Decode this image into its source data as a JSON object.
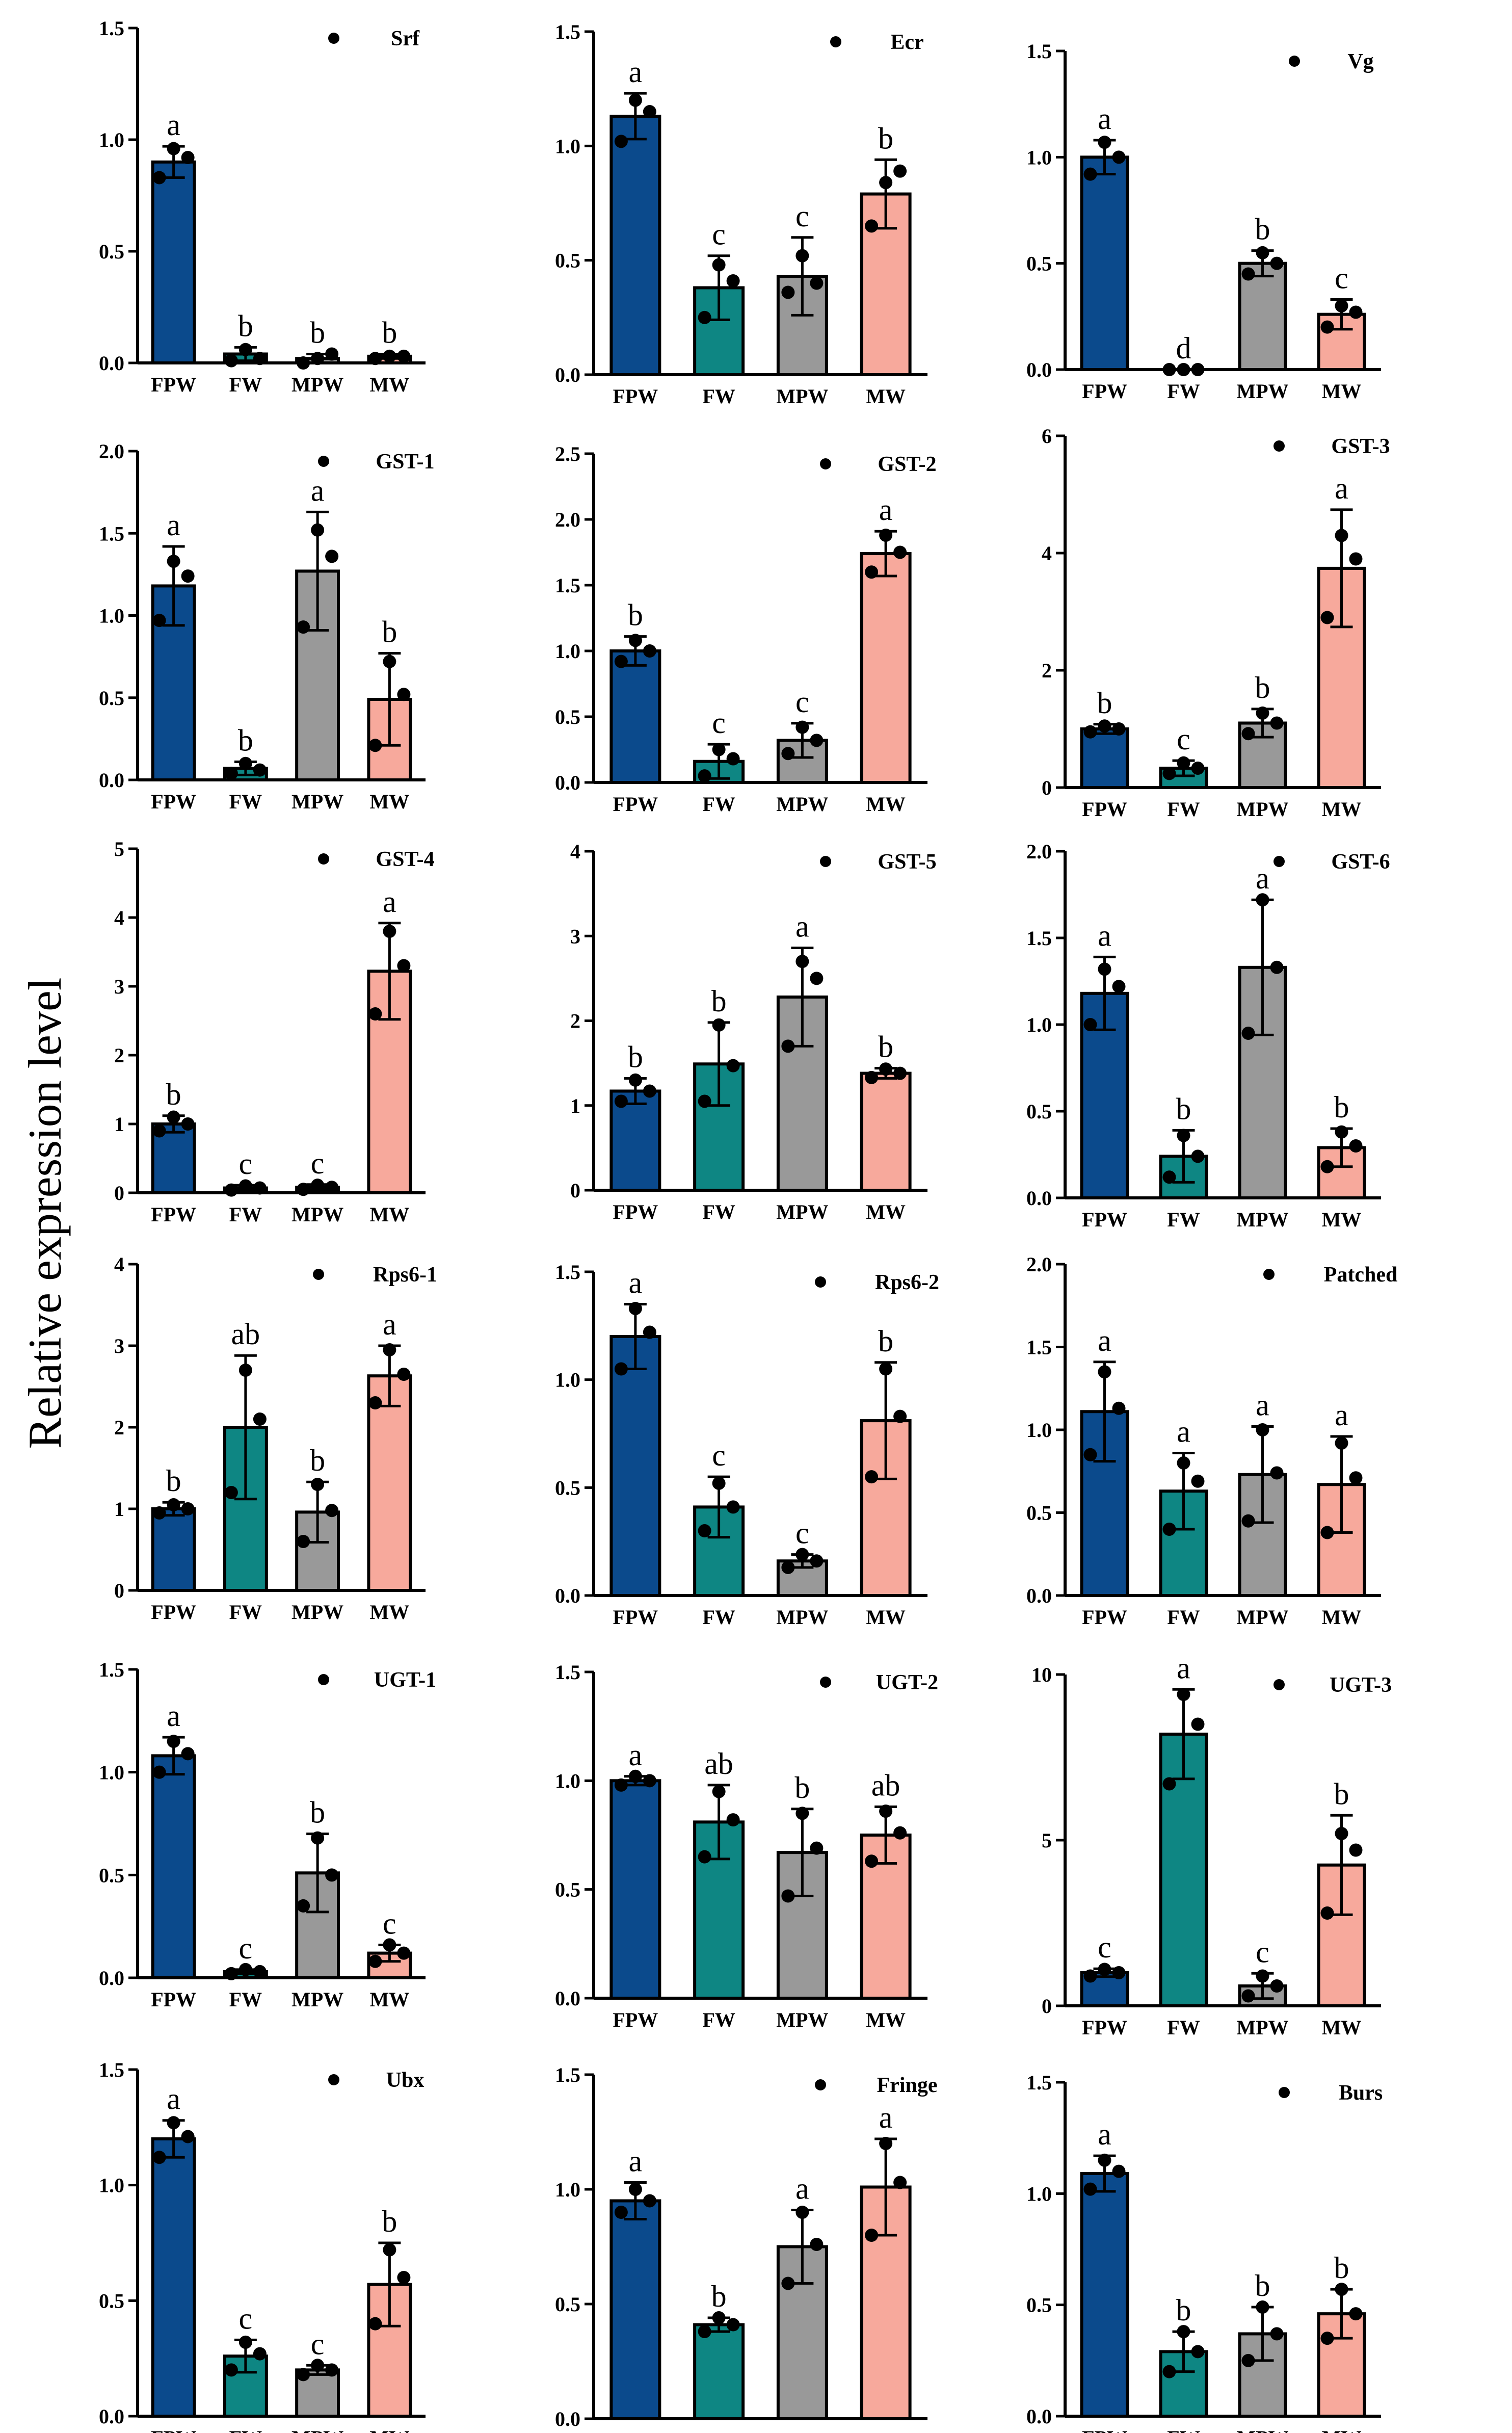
{
  "y_axis_label": "Relative expression level",
  "colors": {
    "FPW": "#0b4a8c",
    "FW": "#0e8683",
    "MPW": "#999999",
    "MW": "#f7a99c"
  },
  "chart_data": [
    {
      "type": "bar",
      "title": "Srf",
      "categories": [
        "FPW",
        "FW",
        "MPW",
        "MW"
      ],
      "values": [
        0.9,
        0.04,
        0.02,
        0.03
      ],
      "errors": [
        0.07,
        0.03,
        0.02,
        0.01
      ],
      "points": [
        [
          0.83,
          0.96,
          0.92
        ],
        [
          0.01,
          0.06,
          0.02
        ],
        [
          0.0,
          0.02,
          0.04
        ],
        [
          0.02,
          0.03,
          0.03
        ]
      ],
      "letters": [
        "a",
        "b",
        "b",
        "b"
      ],
      "ylim": [
        0,
        1.5
      ],
      "ticks": [
        "0.0",
        "0.5",
        "1.0",
        "1.5"
      ]
    },
    {
      "type": "bar",
      "title": "Ecr",
      "categories": [
        "FPW",
        "FW",
        "MPW",
        "MW"
      ],
      "values": [
        1.13,
        0.38,
        0.43,
        0.79
      ],
      "errors": [
        0.1,
        0.14,
        0.17,
        0.15
      ],
      "points": [
        [
          1.02,
          1.2,
          1.15
        ],
        [
          0.25,
          0.48,
          0.41
        ],
        [
          0.36,
          0.52,
          0.4
        ],
        [
          0.65,
          0.84,
          0.89
        ]
      ],
      "letters": [
        "a",
        "c",
        "c",
        "b"
      ],
      "ylim": [
        0,
        1.5
      ],
      "ticks": [
        "0.0",
        "0.5",
        "1.0",
        "1.5"
      ]
    },
    {
      "type": "bar",
      "title": "Vg",
      "categories": [
        "FPW",
        "FW",
        "MPW",
        "MW"
      ],
      "values": [
        1.0,
        0.0,
        0.5,
        0.26
      ],
      "errors": [
        0.08,
        0.0,
        0.06,
        0.07
      ],
      "points": [
        [
          0.92,
          1.07,
          1.0
        ],
        [
          0.0,
          0.0,
          0.0
        ],
        [
          0.45,
          0.55,
          0.5
        ],
        [
          0.2,
          0.3,
          0.27
        ]
      ],
      "letters": [
        "a",
        "d",
        "b",
        "c"
      ],
      "ylim": [
        0,
        1.5
      ],
      "ticks": [
        "0.0",
        "0.5",
        "1.0",
        "1.5"
      ]
    },
    {
      "type": "bar",
      "title": "GST-1",
      "categories": [
        "FPW",
        "FW",
        "MPW",
        "MW"
      ],
      "values": [
        1.18,
        0.07,
        1.27,
        0.49
      ],
      "errors": [
        0.24,
        0.04,
        0.36,
        0.28
      ],
      "points": [
        [
          0.97,
          1.33,
          1.24
        ],
        [
          0.04,
          0.1,
          0.06
        ],
        [
          0.93,
          1.52,
          1.36
        ],
        [
          0.21,
          0.72,
          0.52
        ]
      ],
      "letters": [
        "a",
        "b",
        "a",
        "b"
      ],
      "ylim": [
        0,
        2.0
      ],
      "ticks": [
        "0.0",
        "0.5",
        "1.0",
        "1.5",
        "2.0"
      ]
    },
    {
      "type": "bar",
      "title": "GST-2",
      "categories": [
        "FPW",
        "FW",
        "MPW",
        "MW"
      ],
      "values": [
        1.0,
        0.16,
        0.32,
        1.74
      ],
      "errors": [
        0.11,
        0.13,
        0.13,
        0.17
      ],
      "points": [
        [
          0.92,
          1.08,
          1.0
        ],
        [
          0.05,
          0.25,
          0.18
        ],
        [
          0.22,
          0.42,
          0.32
        ],
        [
          1.6,
          1.88,
          1.75
        ]
      ],
      "letters": [
        "b",
        "c",
        "c",
        "a"
      ],
      "ylim": [
        0,
        2.5
      ],
      "ticks": [
        "0.0",
        "0.5",
        "1.0",
        "1.5",
        "2.0",
        "2.5"
      ]
    },
    {
      "type": "bar",
      "title": "GST-3",
      "categories": [
        "FPW",
        "FW",
        "MPW",
        "MW"
      ],
      "values": [
        1.0,
        0.33,
        1.1,
        3.74
      ],
      "errors": [
        0.08,
        0.13,
        0.24,
        1.0
      ],
      "points": [
        [
          0.95,
          1.05,
          1.0
        ],
        [
          0.24,
          0.42,
          0.33
        ],
        [
          0.92,
          1.27,
          1.1
        ],
        [
          2.9,
          4.3,
          3.9
        ]
      ],
      "letters": [
        "b",
        "c",
        "b",
        "a"
      ],
      "ylim": [
        0,
        6
      ],
      "ticks": [
        "0",
        "2",
        "4",
        "6"
      ]
    },
    {
      "type": "bar",
      "title": "GST-4",
      "categories": [
        "FPW",
        "FW",
        "MPW",
        "MW"
      ],
      "values": [
        1.0,
        0.07,
        0.08,
        3.22
      ],
      "errors": [
        0.12,
        0.04,
        0.04,
        0.7
      ],
      "points": [
        [
          0.9,
          1.1,
          1.0
        ],
        [
          0.04,
          0.1,
          0.07
        ],
        [
          0.05,
          0.11,
          0.08
        ],
        [
          2.6,
          3.8,
          3.3
        ]
      ],
      "letters": [
        "b",
        "c",
        "c",
        "a"
      ],
      "ylim": [
        0,
        5
      ],
      "ticks": [
        "0",
        "1",
        "2",
        "3",
        "4",
        "5"
      ]
    },
    {
      "type": "bar",
      "title": "GST-5",
      "categories": [
        "FPW",
        "FW",
        "MPW",
        "MW"
      ],
      "values": [
        1.17,
        1.49,
        2.28,
        1.38
      ],
      "errors": [
        0.15,
        0.49,
        0.58,
        0.06
      ],
      "points": [
        [
          1.05,
          1.3,
          1.17
        ],
        [
          1.05,
          1.95,
          1.47
        ],
        [
          1.7,
          2.7,
          2.5
        ],
        [
          1.33,
          1.43,
          1.38
        ]
      ],
      "letters": [
        "b",
        "b",
        "a",
        "b"
      ],
      "ylim": [
        0,
        4
      ],
      "ticks": [
        "0",
        "1",
        "2",
        "3",
        "4"
      ]
    },
    {
      "type": "bar",
      "title": "GST-6",
      "categories": [
        "FPW",
        "FW",
        "MPW",
        "MW"
      ],
      "values": [
        1.18,
        0.24,
        1.33,
        0.29
      ],
      "errors": [
        0.21,
        0.15,
        0.39,
        0.11
      ],
      "points": [
        [
          1.0,
          1.32,
          1.22
        ],
        [
          0.12,
          0.36,
          0.24
        ],
        [
          0.95,
          1.72,
          1.33
        ],
        [
          0.18,
          0.38,
          0.3
        ]
      ],
      "letters": [
        "a",
        "b",
        "a",
        "b"
      ],
      "ylim": [
        0,
        2.0
      ],
      "ticks": [
        "0.0",
        "0.5",
        "1.0",
        "1.5",
        "2.0"
      ]
    },
    {
      "type": "bar",
      "title": "Rps6-1",
      "categories": [
        "FPW",
        "FW",
        "MPW",
        "MW"
      ],
      "values": [
        1.0,
        2.0,
        0.96,
        2.63
      ],
      "errors": [
        0.08,
        0.88,
        0.37,
        0.37
      ],
      "points": [
        [
          0.95,
          1.05,
          1.0
        ],
        [
          1.2,
          2.7,
          2.1
        ],
        [
          0.6,
          1.3,
          0.98
        ],
        [
          2.3,
          2.95,
          2.65
        ]
      ],
      "letters": [
        "b",
        "ab",
        "b",
        "a"
      ],
      "ylim": [
        0,
        4
      ],
      "ticks": [
        "0",
        "1",
        "2",
        "3",
        "4"
      ]
    },
    {
      "type": "bar",
      "title": "Rps6-2",
      "categories": [
        "FPW",
        "FW",
        "MPW",
        "MW"
      ],
      "values": [
        1.2,
        0.41,
        0.16,
        0.81
      ],
      "errors": [
        0.15,
        0.14,
        0.03,
        0.27
      ],
      "points": [
        [
          1.05,
          1.33,
          1.22
        ],
        [
          0.3,
          0.52,
          0.41
        ],
        [
          0.13,
          0.19,
          0.16
        ],
        [
          0.55,
          1.05,
          0.83
        ]
      ],
      "letters": [
        "a",
        "c",
        "c",
        "b"
      ],
      "ylim": [
        0,
        1.5
      ],
      "ticks": [
        "0.0",
        "0.5",
        "1.0",
        "1.5"
      ]
    },
    {
      "type": "bar",
      "title": "Patched",
      "categories": [
        "FPW",
        "FW",
        "MPW",
        "MW"
      ],
      "values": [
        1.11,
        0.63,
        0.73,
        0.67
      ],
      "errors": [
        0.3,
        0.23,
        0.29,
        0.29
      ],
      "points": [
        [
          0.85,
          1.35,
          1.13
        ],
        [
          0.4,
          0.8,
          0.69
        ],
        [
          0.45,
          1.0,
          0.74
        ],
        [
          0.38,
          0.92,
          0.71
        ]
      ],
      "letters": [
        "a",
        "a",
        "a",
        "a"
      ],
      "ylim": [
        0,
        2.0
      ],
      "ticks": [
        "0.0",
        "0.5",
        "1.0",
        "1.5",
        "2.0"
      ]
    },
    {
      "type": "bar",
      "title": "UGT-1",
      "categories": [
        "FPW",
        "FW",
        "MPW",
        "MW"
      ],
      "values": [
        1.08,
        0.03,
        0.51,
        0.12
      ],
      "errors": [
        0.09,
        0.01,
        0.19,
        0.04
      ],
      "points": [
        [
          1.0,
          1.15,
          1.09
        ],
        [
          0.02,
          0.04,
          0.03
        ],
        [
          0.35,
          0.68,
          0.5
        ],
        [
          0.08,
          0.16,
          0.12
        ]
      ],
      "letters": [
        "a",
        "c",
        "b",
        "c"
      ],
      "ylim": [
        0,
        1.5
      ],
      "ticks": [
        "0.0",
        "0.5",
        "1.0",
        "1.5"
      ]
    },
    {
      "type": "bar",
      "title": "UGT-2",
      "categories": [
        "FPW",
        "FW",
        "MPW",
        "MW"
      ],
      "values": [
        1.0,
        0.81,
        0.67,
        0.75
      ],
      "errors": [
        0.02,
        0.17,
        0.2,
        0.13
      ],
      "points": [
        [
          0.98,
          1.02,
          1.0
        ],
        [
          0.65,
          0.95,
          0.82
        ],
        [
          0.47,
          0.85,
          0.69
        ],
        [
          0.63,
          0.86,
          0.76
        ]
      ],
      "letters": [
        "a",
        "ab",
        "b",
        "ab"
      ],
      "ylim": [
        0,
        1.5
      ],
      "ticks": [
        "0.0",
        "0.5",
        "1.0",
        "1.5"
      ]
    },
    {
      "type": "bar",
      "title": "UGT-3",
      "categories": [
        "FPW",
        "FW",
        "MPW",
        "MW"
      ],
      "values": [
        1.0,
        8.2,
        0.6,
        4.25
      ],
      "errors": [
        0.12,
        1.35,
        0.38,
        1.5
      ],
      "points": [
        [
          0.9,
          1.1,
          1.0
        ],
        [
          6.7,
          9.4,
          8.5
        ],
        [
          0.3,
          0.9,
          0.6
        ],
        [
          2.8,
          5.2,
          4.7
        ]
      ],
      "letters": [
        "c",
        "a",
        "c",
        "b"
      ],
      "ylim": [
        0,
        10
      ],
      "ticks": [
        "0",
        "5",
        "10"
      ]
    },
    {
      "type": "bar",
      "title": "Ubx",
      "categories": [
        "FPW",
        "FW",
        "MPW",
        "MW"
      ],
      "values": [
        1.2,
        0.26,
        0.2,
        0.57
      ],
      "errors": [
        0.08,
        0.07,
        0.02,
        0.18
      ],
      "points": [
        [
          1.12,
          1.27,
          1.21
        ],
        [
          0.2,
          0.32,
          0.27
        ],
        [
          0.18,
          0.22,
          0.2
        ],
        [
          0.4,
          0.72,
          0.6
        ]
      ],
      "letters": [
        "a",
        "c",
        "c",
        "b"
      ],
      "ylim": [
        0,
        1.5
      ],
      "ticks": [
        "0.0",
        "0.5",
        "1.0",
        "1.5"
      ]
    },
    {
      "type": "bar",
      "title": "Fringe",
      "categories": [
        "FPW",
        "FW",
        "MPW",
        "MW"
      ],
      "values": [
        0.95,
        0.41,
        0.75,
        1.01
      ],
      "errors": [
        0.08,
        0.03,
        0.16,
        0.21
      ],
      "points": [
        [
          0.9,
          1.0,
          0.95
        ],
        [
          0.38,
          0.44,
          0.41
        ],
        [
          0.59,
          0.9,
          0.76
        ],
        [
          0.8,
          1.2,
          1.03
        ]
      ],
      "letters": [
        "a",
        "b",
        "a",
        "a"
      ],
      "ylim": [
        0,
        1.5
      ],
      "ticks": [
        "0.0",
        "0.5",
        "1.0",
        "1.5"
      ]
    },
    {
      "type": "bar",
      "title": "Burs",
      "categories": [
        "FPW",
        "FW",
        "MPW",
        "MW"
      ],
      "values": [
        1.09,
        0.29,
        0.37,
        0.46
      ],
      "errors": [
        0.08,
        0.09,
        0.12,
        0.11
      ],
      "points": [
        [
          1.02,
          1.15,
          1.1
        ],
        [
          0.2,
          0.38,
          0.29
        ],
        [
          0.25,
          0.49,
          0.37
        ],
        [
          0.35,
          0.57,
          0.46
        ]
      ],
      "letters": [
        "a",
        "b",
        "b",
        "b"
      ],
      "ylim": [
        0,
        1.5
      ],
      "ticks": [
        "0.0",
        "0.5",
        "1.0",
        "1.5"
      ]
    }
  ]
}
